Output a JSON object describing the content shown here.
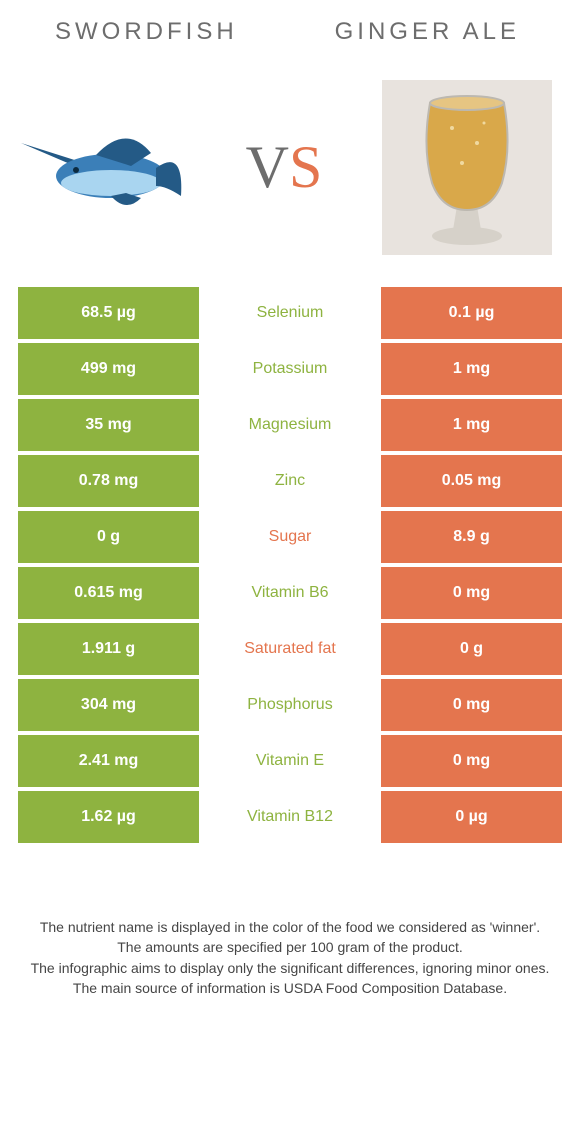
{
  "colors": {
    "left_bg": "#8eb340",
    "right_bg": "#e4754e",
    "text": "#6d6d6d",
    "footer_text": "#454545",
    "swordfish_body": "#3b7fb8",
    "swordfish_belly": "#a9d5f0",
    "swordfish_fin": "#245a86",
    "ale": "#d9a84a",
    "glass_rim": "#bcb8b0",
    "glass_base": "#d6d1c9",
    "glass_bg": "#e8e3de"
  },
  "header": {
    "left": "Swordfish",
    "right": "Ginger ale"
  },
  "vs": {
    "v": "V",
    "s": "S"
  },
  "rows": [
    {
      "left": "68.5 µg",
      "mid": "Selenium",
      "right": "0.1 µg",
      "winner": "left"
    },
    {
      "left": "499 mg",
      "mid": "Potassium",
      "right": "1 mg",
      "winner": "left"
    },
    {
      "left": "35 mg",
      "mid": "Magnesium",
      "right": "1 mg",
      "winner": "left"
    },
    {
      "left": "0.78 mg",
      "mid": "Zinc",
      "right": "0.05 mg",
      "winner": "left"
    },
    {
      "left": "0 g",
      "mid": "Sugar",
      "right": "8.9 g",
      "winner": "right"
    },
    {
      "left": "0.615 mg",
      "mid": "Vitamin B6",
      "right": "0 mg",
      "winner": "left"
    },
    {
      "left": "1.911 g",
      "mid": "Saturated fat",
      "right": "0 g",
      "winner": "right"
    },
    {
      "left": "304 mg",
      "mid": "Phosphorus",
      "right": "0 mg",
      "winner": "left"
    },
    {
      "left": "2.41 mg",
      "mid": "Vitamin E",
      "right": "0 mg",
      "winner": "left"
    },
    {
      "left": "1.62 µg",
      "mid": "Vitamin B12",
      "right": "0 µg",
      "winner": "left"
    }
  ],
  "footer": {
    "l1": "The nutrient name is displayed in the color of the food we considered as 'winner'.",
    "l2": "The amounts are specified per 100 gram of the product.",
    "l3": "The infographic aims to display only the significant differences, ignoring minor ones.",
    "l4": "The main source of information is USDA Food Composition Database."
  }
}
